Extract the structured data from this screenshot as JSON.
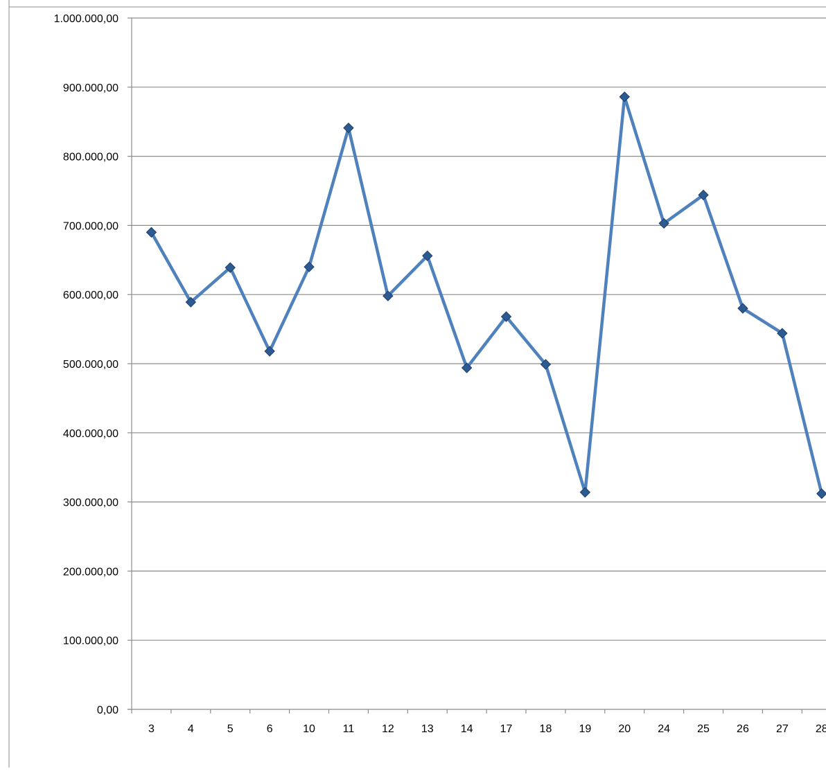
{
  "chart_data": {
    "type": "line",
    "title": "",
    "xlabel": "",
    "ylabel": "",
    "ylim": [
      0,
      1000000
    ],
    "yticks": [
      0,
      100000,
      200000,
      300000,
      400000,
      500000,
      600000,
      700000,
      800000,
      900000,
      1000000
    ],
    "ytick_labels": [
      "0,00",
      "100.000,00",
      "200.000,00",
      "300.000,00",
      "400.000,00",
      "500.000,00",
      "600.000,00",
      "700.000,00",
      "800.000,00",
      "900.000,00",
      "1.000.000,00"
    ],
    "categories": [
      "3",
      "4",
      "5",
      "6",
      "10",
      "11",
      "12",
      "13",
      "14",
      "17",
      "18",
      "19",
      "20",
      "24",
      "25",
      "26",
      "27",
      "28"
    ],
    "series": [
      {
        "values": [
          690000,
          589000,
          639000,
          518000,
          640000,
          841000,
          598000,
          656000,
          494000,
          568000,
          499000,
          314000,
          886000,
          703000,
          744000,
          580000,
          544000,
          312000
        ],
        "color": "#4f81bd",
        "marker_color": "#2c5a93"
      }
    ],
    "grid": true,
    "legend": "none"
  }
}
